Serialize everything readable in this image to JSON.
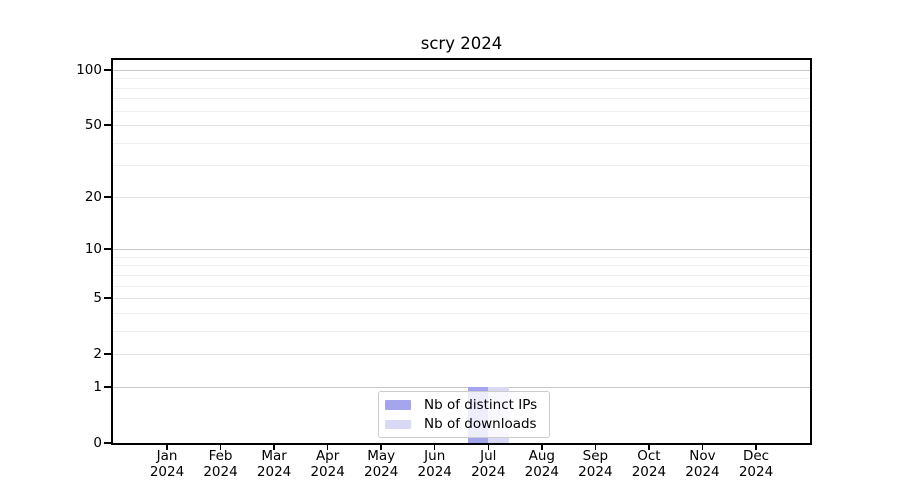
{
  "page": {
    "background": "#ffffff"
  },
  "chart_data": {
    "type": "bar",
    "title": "scry 2024",
    "x": {
      "months": [
        "Jan",
        "Feb",
        "Mar",
        "Apr",
        "May",
        "Jun",
        "Jul",
        "Aug",
        "Sep",
        "Oct",
        "Nov",
        "Dec"
      ],
      "year": "2024"
    },
    "y": {
      "scale": "log1p",
      "ticks": [
        100,
        50,
        20,
        10,
        5,
        2,
        1,
        0
      ],
      "minor_ticks": [
        90,
        80,
        70,
        60,
        40,
        30,
        9,
        8,
        7,
        6,
        4,
        3
      ],
      "range": [
        0,
        113
      ]
    },
    "series": [
      {
        "name": "Nb of distinct IPs",
        "color": "#a5a5ed",
        "values": [
          0,
          0,
          0,
          0,
          0,
          0,
          1,
          0,
          0,
          0,
          0,
          0
        ]
      },
      {
        "name": "Nb of downloads",
        "color": "#d9d9f6",
        "values": [
          0,
          0,
          0,
          0,
          0,
          0,
          1,
          0,
          0,
          0,
          0,
          0
        ]
      }
    ],
    "legend": {
      "position": "lower center",
      "entries": [
        {
          "label": "Nb of distinct IPs",
          "color": "#a5a5ed"
        },
        {
          "label": "Nb of downloads",
          "color": "#d9d9f6"
        }
      ]
    },
    "grid": {
      "major_color": "#c6c6c6",
      "mid_color": "#e3e3e3",
      "minor_color": "#efefef"
    }
  }
}
